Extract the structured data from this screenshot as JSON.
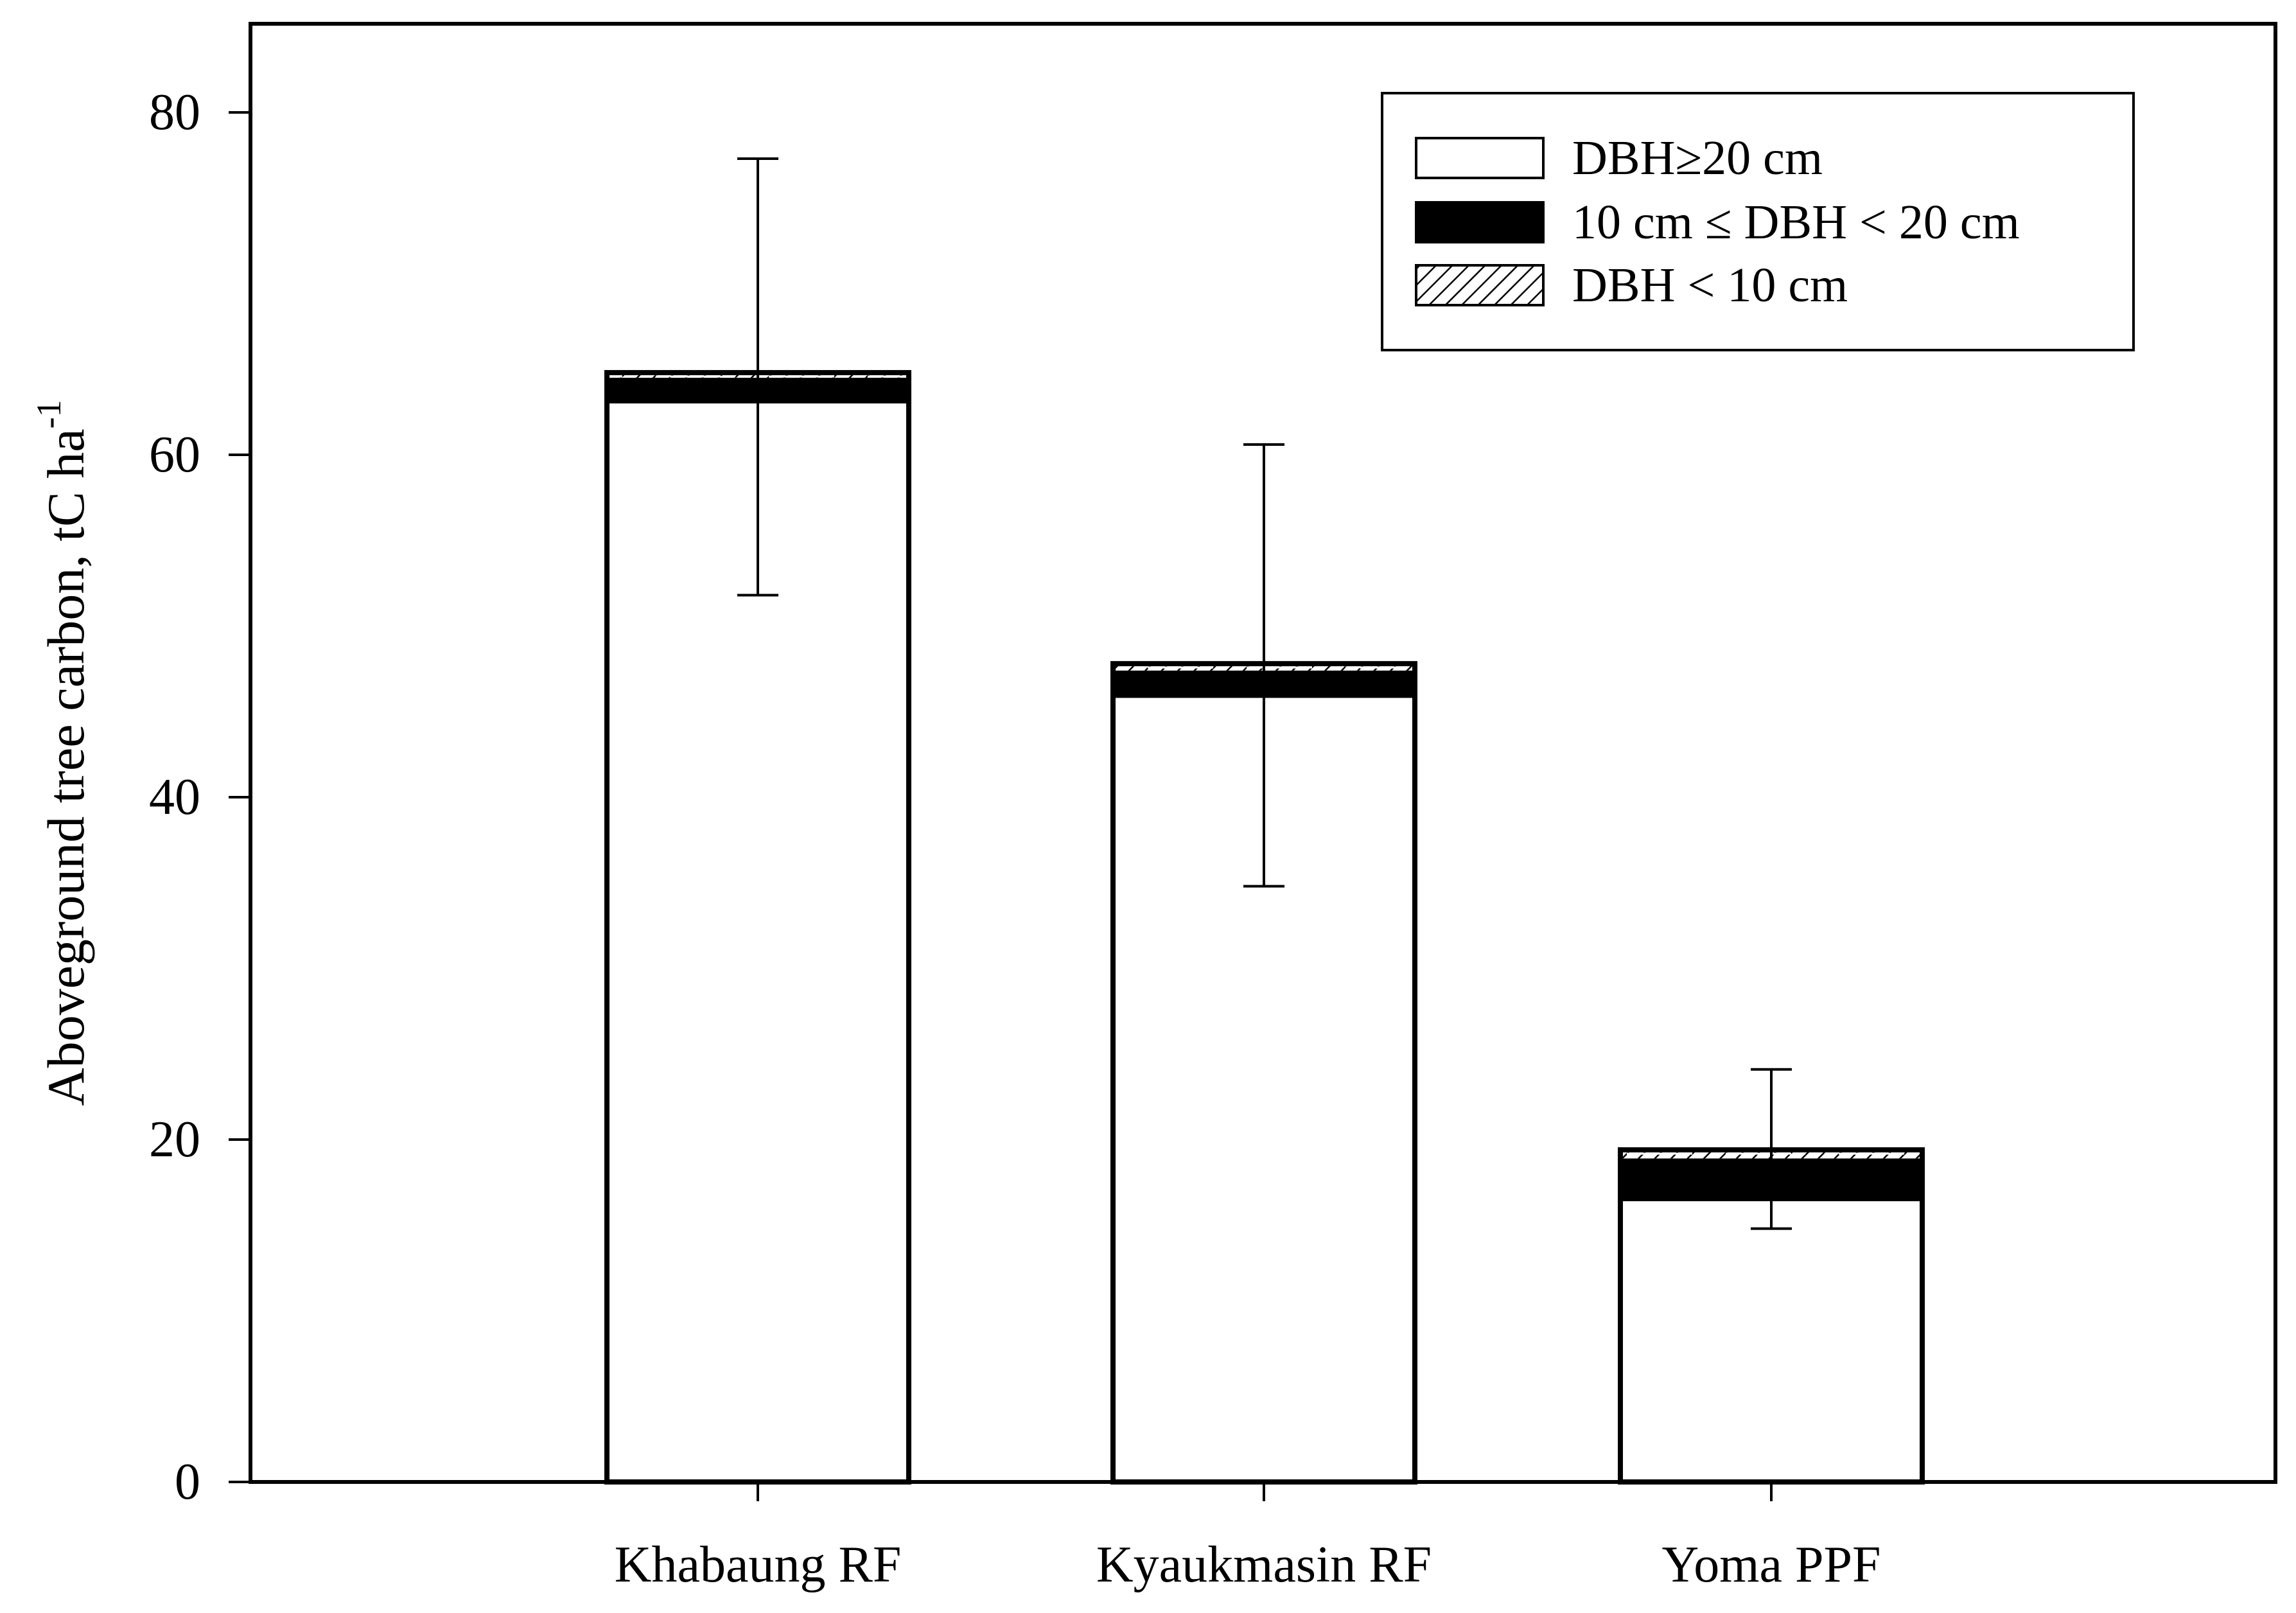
{
  "chart_data": {
    "type": "bar",
    "stacked": true,
    "title": "",
    "xlabel": "",
    "ylabel": "Aboveground tree carbon, tC ha",
    "ylabel_superscript": "-1",
    "ylim": [
      0,
      85
    ],
    "yticks": [
      0,
      20,
      40,
      60,
      80
    ],
    "ytick_labels": [
      "0",
      "20",
      "40",
      "60",
      "80"
    ],
    "categories": [
      "Khabaung RF",
      "Kyaukmasin RF",
      "Yoma PPF"
    ],
    "series": [
      {
        "name": "DBH≥20 cm",
        "fill": "white",
        "values": [
          63.0,
          45.8,
          16.4
        ]
      },
      {
        "name": "10 cm ≤ DBH < 20 cm",
        "fill": "black",
        "values": [
          1.5,
          1.6,
          2.5
        ]
      },
      {
        "name": "DBH < 10 cm",
        "fill": "hatched",
        "values": [
          0.3,
          0.4,
          0.5
        ]
      }
    ],
    "totals": [
      64.8,
      47.8,
      19.4
    ],
    "error_bars": [
      {
        "lower": 51.8,
        "upper": 77.3
      },
      {
        "lower": 34.8,
        "upper": 60.6
      },
      {
        "lower": 14.8,
        "upper": 24.1
      }
    ],
    "legend_position": "top-right",
    "grid": false
  },
  "colors": {
    "axis": "#000000",
    "bar_outline": "#000000",
    "background": "#ffffff"
  }
}
